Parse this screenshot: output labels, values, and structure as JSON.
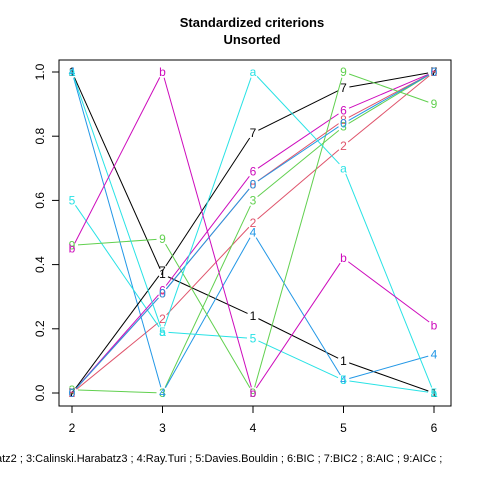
{
  "chart_data": {
    "type": "line",
    "title": "Standardized criterions",
    "subtitle": "Unsorted",
    "xlabel": "",
    "ylabel": "",
    "caption": "atz2 ; 3:Calinski.Harabatz3 ; 4:Ray.Turi ; 5:Davies.Bouldin ; 6:BIC ; 7:BIC2 ; 8:AIC ; 9:AICc ;",
    "x": [
      2,
      3,
      4,
      5,
      6
    ],
    "x_ticks": [
      "2",
      "3",
      "4",
      "5",
      "6"
    ],
    "y_ticks": [
      "0.0",
      "0.2",
      "0.4",
      "0.6",
      "0.8",
      "1.0"
    ],
    "xlim": [
      2,
      6
    ],
    "ylim": [
      0,
      1
    ],
    "grid": false,
    "legend": "none",
    "series": [
      {
        "marker": "1",
        "color": "#000000",
        "values": [
          1.0,
          0.37,
          0.24,
          0.1,
          0.0
        ]
      },
      {
        "marker": "2",
        "color": "#DF536B",
        "values": [
          0.0,
          0.23,
          0.53,
          0.77,
          1.0
        ]
      },
      {
        "marker": "3",
        "color": "#61D04F",
        "values": [
          0.01,
          0.0,
          0.6,
          0.83,
          1.0
        ]
      },
      {
        "marker": "4",
        "color": "#2297E6",
        "values": [
          1.0,
          0.0,
          0.5,
          0.04,
          0.12
        ]
      },
      {
        "marker": "5",
        "color": "#28E2E5",
        "values": [
          0.6,
          0.19,
          0.17,
          0.04,
          0.0
        ]
      },
      {
        "marker": "6",
        "color": "#CD0BBC",
        "values": [
          0.0,
          0.32,
          0.69,
          0.88,
          1.0
        ]
      },
      {
        "marker": "7",
        "color": "#000000",
        "values": [
          0.0,
          0.38,
          0.81,
          0.95,
          1.0
        ]
      },
      {
        "marker": "8",
        "color": "#DF536B",
        "values": [
          0.0,
          0.31,
          0.65,
          0.85,
          1.0
        ]
      },
      {
        "marker": "9",
        "color": "#61D04F",
        "values": [
          0.46,
          0.48,
          0.0,
          1.0,
          0.9
        ]
      },
      {
        "marker": "0",
        "color": "#2297E6",
        "values": [
          0.0,
          0.31,
          0.65,
          0.84,
          1.0
        ]
      },
      {
        "marker": "a",
        "color": "#28E2E5",
        "values": [
          1.0,
          0.19,
          1.0,
          0.7,
          0.0
        ]
      },
      {
        "marker": "b",
        "color": "#CD0BBC",
        "values": [
          0.45,
          1.0,
          0.0,
          0.42,
          0.21
        ]
      }
    ]
  }
}
